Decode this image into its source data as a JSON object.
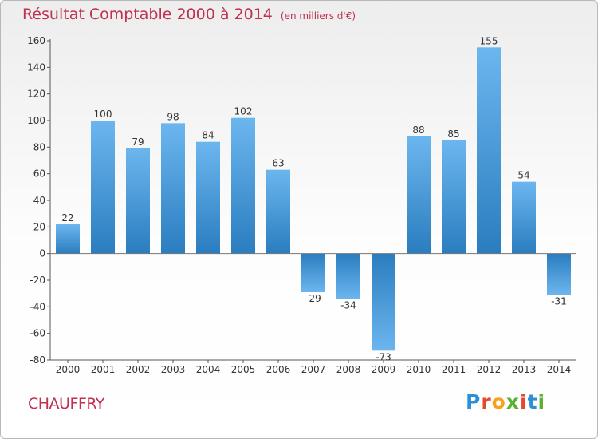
{
  "title": "Résultat Comptable 2000 à 2014",
  "subtitle": "(en milliers d'€)",
  "place": "CHAUFFRY",
  "logo": {
    "letters": [
      "P",
      "r",
      "o",
      "x",
      "i",
      "t",
      "i"
    ],
    "colors": [
      "#2f8fd5",
      "#e34a2c",
      "#f7a21b",
      "#5ab031",
      "#e34a2c",
      "#2f8fd5",
      "#5ab031"
    ]
  },
  "colors": {
    "bar_dark": "#2a7dbf",
    "bar_light": "#6cb6ef",
    "title": "#c0304f"
  },
  "chart_data": {
    "type": "bar",
    "categories": [
      "2000",
      "2001",
      "2002",
      "2003",
      "2004",
      "2005",
      "2006",
      "2007",
      "2008",
      "2009",
      "2010",
      "2011",
      "2012",
      "2013",
      "2014"
    ],
    "values": [
      22,
      100,
      79,
      98,
      84,
      102,
      63,
      -29,
      -34,
      -73,
      88,
      85,
      155,
      54,
      -31
    ],
    "ylim": [
      -80,
      160
    ],
    "yticks": [
      -80,
      -60,
      -40,
      -20,
      0,
      20,
      40,
      60,
      80,
      100,
      120,
      140,
      160
    ],
    "grid": false,
    "title": "Résultat Comptable 2000 à 2014",
    "xlabel": "",
    "ylabel": ""
  }
}
